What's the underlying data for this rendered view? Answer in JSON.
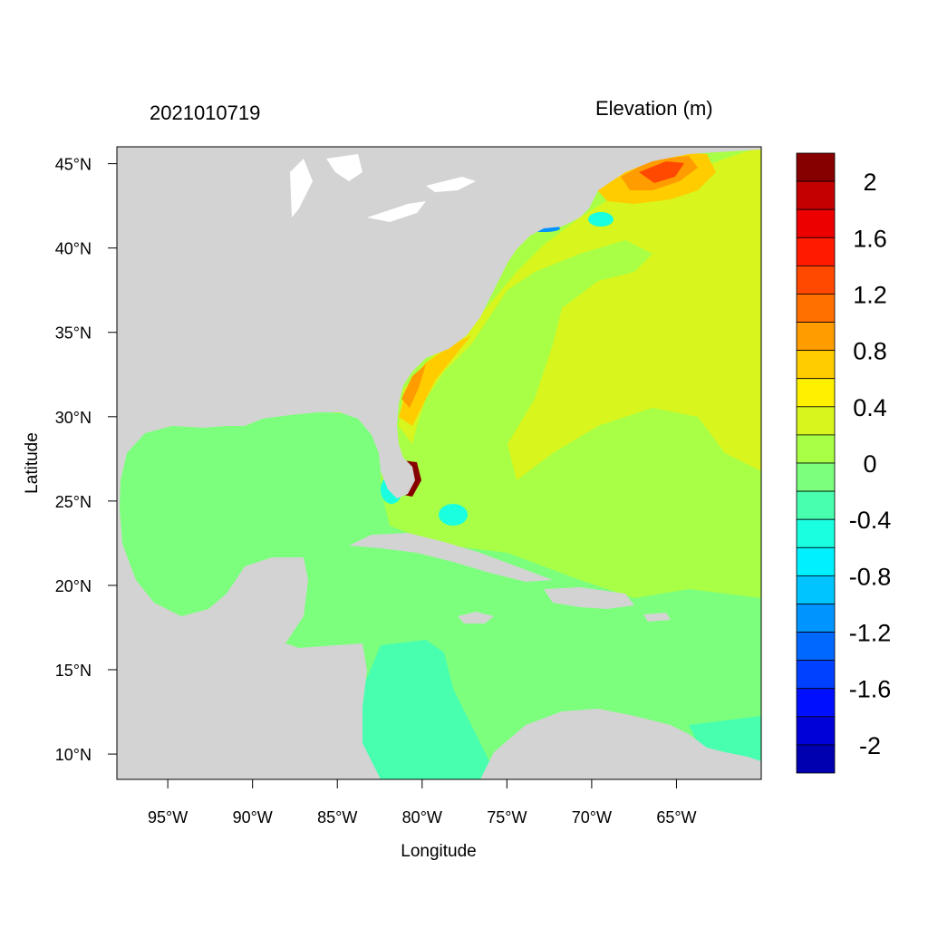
{
  "header": {
    "datetime": "2021010719",
    "variable": "Elevation (m)"
  },
  "axes": {
    "xlabel": "Longitude",
    "ylabel": "Latitude",
    "x_ticks": [
      "95°W",
      "90°W",
      "85°W",
      "80°W",
      "75°W",
      "70°W",
      "65°W"
    ],
    "y_ticks": [
      "45°N",
      "40°N",
      "35°N",
      "30°N",
      "25°N",
      "20°N",
      "15°N",
      "10°N"
    ],
    "x_tick_values": [
      -95,
      -90,
      -85,
      -80,
      -75,
      -70,
      -65
    ],
    "y_tick_values": [
      45,
      40,
      35,
      30,
      25,
      20,
      15,
      10
    ],
    "lon_range": [
      -98,
      -60
    ],
    "lat_range": [
      8.5,
      46
    ]
  },
  "colorbar": {
    "labels": [
      "2",
      "1.6",
      "1.2",
      "0.8",
      "0.4",
      "0",
      "-0.4",
      "-0.8",
      "-1.2",
      "-1.6",
      "-2"
    ],
    "levels_top_to_bottom": [
      2.2,
      2.0,
      1.8,
      1.6,
      1.4,
      1.2,
      1.0,
      0.8,
      0.6,
      0.4,
      0.2,
      0.0,
      -0.2,
      -0.4,
      -0.6,
      -0.8,
      -1.0,
      -1.2,
      -1.4,
      -1.6,
      -1.8,
      -2.0,
      -2.2
    ],
    "colors_top_to_bottom": [
      "#870000",
      "#c40000",
      "#ec0000",
      "#ff1a00",
      "#ff4800",
      "#ff7000",
      "#ff9c00",
      "#ffcc00",
      "#fff000",
      "#d8f51d",
      "#a8ff46",
      "#7cff7c",
      "#48ffb0",
      "#1affdf",
      "#00f0ff",
      "#00c4ff",
      "#0094ff",
      "#0068ff",
      "#0040ff",
      "#0010ff",
      "#0000d8",
      "#0000b0"
    ]
  },
  "colors": {
    "land": "#d3d3d3",
    "ocean_background": "#a8ff46",
    "frame": "#000000"
  }
}
